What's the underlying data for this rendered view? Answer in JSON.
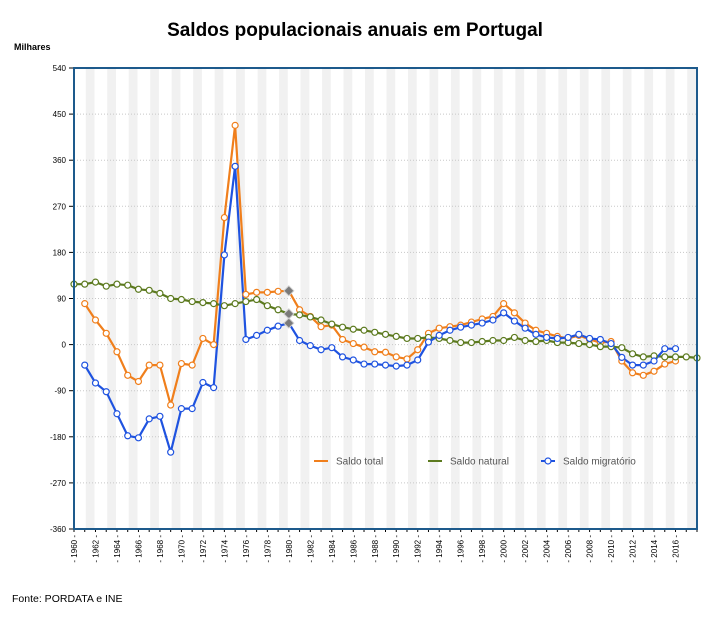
{
  "chart_data": {
    "type": "line",
    "title": "Saldos populacionais anuais em Portugal",
    "y_unit": "Milhares",
    "source": "Fonte: PORDATA e INE",
    "ylim": [
      -360,
      540
    ],
    "y_ticks": [
      540,
      450,
      360,
      270,
      180,
      90,
      0,
      -90,
      -180,
      -270,
      -360
    ],
    "y_tick_labels": [
      "540",
      "450",
      "360",
      "270",
      "180",
      "90",
      "0",
      "-90",
      "-180",
      "-270",
      "-360"
    ],
    "xlim": [
      1960,
      2018
    ],
    "x_ticks": [
      1960,
      1962,
      1964,
      1966,
      1968,
      1970,
      1972,
      1974,
      1976,
      1978,
      1980,
      1982,
      1984,
      1986,
      1988,
      1990,
      1992,
      1994,
      1996,
      1998,
      2000,
      2002,
      2004,
      2006,
      2008,
      2010,
      2012,
      2014,
      2016
    ],
    "x_tick_labels": [
      "- 1960 -",
      "- 1962 -",
      "- 1964 -",
      "- 1966 -",
      "- 1968 -",
      "- 1970 -",
      "- 1972 -",
      "- 1974 -",
      "- 1976 -",
      "- 1978 -",
      "- 1980 -",
      "- 1982 -",
      "- 1984 -",
      "- 1986 -",
      "- 1988 -",
      "- 1990 -",
      "- 1992 -",
      "- 1994 -",
      "- 1996 -",
      "- 1998 -",
      "- 2000 -",
      "- 2002 -",
      "- 2004 -",
      "- 2006 -",
      "- 2008 -",
      "- 2010 -",
      "- 2012 -",
      "- 2014 -",
      "- 2016 -"
    ],
    "grid": true,
    "legend_position": "bottom-center",
    "highlighted_x": 1980,
    "series": [
      {
        "name": "Saldo total",
        "color": "#f07f1c",
        "x": [
          1961,
          1962,
          1963,
          1964,
          1965,
          1966,
          1967,
          1968,
          1969,
          1970,
          1971,
          1972,
          1973,
          1974,
          1975,
          1976,
          1977,
          1978,
          1979,
          1980,
          1981,
          1982,
          1983,
          1984,
          1985,
          1986,
          1987,
          1988,
          1989,
          1990,
          1991,
          1992,
          1993,
          1994,
          1995,
          1996,
          1997,
          1998,
          1999,
          2000,
          2001,
          2002,
          2003,
          2004,
          2005,
          2006,
          2007,
          2008,
          2009,
          2010,
          2011,
          2012,
          2013,
          2014,
          2015,
          2016
        ],
        "values": [
          80,
          48,
          22,
          -14,
          -60,
          -72,
          -40,
          -40,
          -118,
          -37,
          -40,
          12,
          0,
          248,
          428,
          98,
          102,
          102,
          104,
          105,
          68,
          55,
          35,
          38,
          10,
          2,
          -5,
          -14,
          -15,
          -24,
          -28,
          -10,
          22,
          32,
          35,
          38,
          44,
          50,
          55,
          80,
          62,
          42,
          28,
          22,
          16,
          12,
          18,
          10,
          4,
          6,
          -32,
          -55,
          -60,
          -52,
          -38,
          -32
        ]
      },
      {
        "name": "Saldo natural",
        "color": "#5c7a1f",
        "x": [
          1960,
          1961,
          1962,
          1963,
          1964,
          1965,
          1966,
          1967,
          1968,
          1969,
          1970,
          1971,
          1972,
          1973,
          1974,
          1975,
          1976,
          1977,
          1978,
          1979,
          1980,
          1981,
          1982,
          1983,
          1984,
          1985,
          1986,
          1987,
          1988,
          1989,
          1990,
          1991,
          1992,
          1993,
          1994,
          1995,
          1996,
          1997,
          1998,
          1999,
          2000,
          2001,
          2002,
          2003,
          2004,
          2005,
          2006,
          2007,
          2008,
          2009,
          2010,
          2011,
          2012,
          2013,
          2014,
          2015,
          2016,
          2017,
          2018
        ],
        "values": [
          118,
          118,
          122,
          114,
          118,
          116,
          108,
          106,
          100,
          90,
          88,
          84,
          82,
          80,
          76,
          80,
          84,
          88,
          76,
          68,
          60,
          58,
          54,
          48,
          40,
          34,
          30,
          28,
          24,
          20,
          16,
          12,
          12,
          14,
          12,
          8,
          4,
          4,
          6,
          8,
          8,
          14,
          8,
          6,
          8,
          4,
          4,
          2,
          0,
          -4,
          -4,
          -6,
          -18,
          -24,
          -22,
          -24,
          -24,
          -24,
          -26
        ]
      },
      {
        "name": "Saldo migratório",
        "color": "#1f53e0",
        "x": [
          1961,
          1962,
          1963,
          1964,
          1965,
          1966,
          1967,
          1968,
          1969,
          1970,
          1971,
          1972,
          1973,
          1974,
          1975,
          1976,
          1977,
          1978,
          1979,
          1980,
          1981,
          1982,
          1983,
          1984,
          1985,
          1986,
          1987,
          1988,
          1989,
          1990,
          1991,
          1992,
          1993,
          1994,
          1995,
          1996,
          1997,
          1998,
          1999,
          2000,
          2001,
          2002,
          2003,
          2004,
          2005,
          2006,
          2007,
          2008,
          2009,
          2010,
          2011,
          2012,
          2013,
          2014,
          2015,
          2016
        ],
        "values": [
          -40,
          -75,
          -92,
          -135,
          -178,
          -182,
          -145,
          -140,
          -210,
          -125,
          -125,
          -74,
          -84,
          175,
          348,
          10,
          18,
          28,
          36,
          42,
          8,
          -2,
          -10,
          -6,
          -24,
          -30,
          -38,
          -38,
          -40,
          -42,
          -40,
          -30,
          5,
          18,
          28,
          34,
          38,
          42,
          48,
          62,
          46,
          32,
          20,
          14,
          12,
          14,
          20,
          12,
          10,
          2,
          -25,
          -40,
          -40,
          -32,
          -8,
          -8
        ]
      }
    ]
  }
}
